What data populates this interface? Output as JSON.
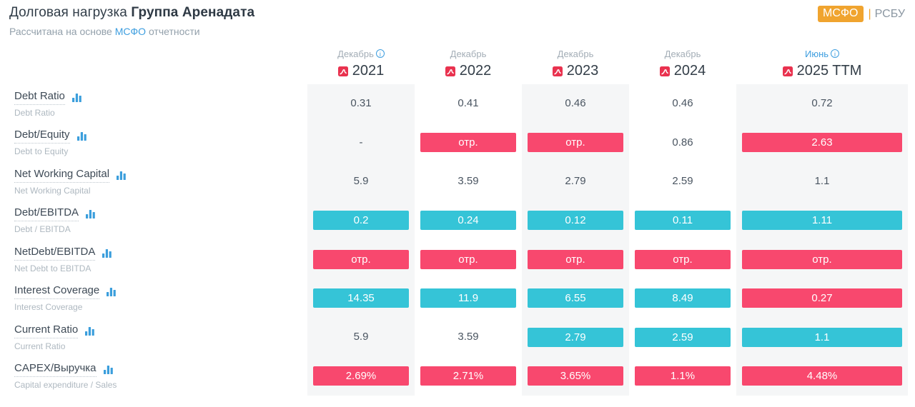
{
  "page": {
    "title_regular": "Долговая нагрузка",
    "title_bold": "Группа Аренадата",
    "subtitle_prefix": "Рассчитана на основе",
    "subtitle_link": "МСФО",
    "subtitle_suffix": "отчетности"
  },
  "toggle": {
    "active": "МСФО",
    "pipe": "|",
    "inactive": "РСБУ"
  },
  "colors": {
    "red": "#F8486E",
    "teal": "#35C4D7",
    "blue": "#3E9EDF",
    "orange": "#F0A42F",
    "stripe": "#F5F6F7",
    "pdf_red": "#E9324F"
  },
  "icons": {
    "pdf": "pdf-icon",
    "info": "info-icon",
    "chart": "bar-chart-icon"
  },
  "table": {
    "columns": [
      {
        "month": "Декабрь",
        "year": "2021",
        "info": true,
        "month_blue": false
      },
      {
        "month": "Декабрь",
        "year": "2022",
        "info": false,
        "month_blue": false
      },
      {
        "month": "Декабрь",
        "year": "2023",
        "info": false,
        "month_blue": false
      },
      {
        "month": "Декабрь",
        "year": "2024",
        "info": false,
        "month_blue": false
      },
      {
        "month": "Июнь",
        "year": "2025 TTM",
        "info": true,
        "month_blue": true
      }
    ],
    "rows": [
      {
        "label": "Debt Ratio",
        "sublabel": "Debt Ratio",
        "values": [
          [
            "0.31",
            "plain"
          ],
          [
            "0.41",
            "plain"
          ],
          [
            "0.46",
            "plain"
          ],
          [
            "0.46",
            "plain"
          ],
          [
            "0.72",
            "plain"
          ]
        ]
      },
      {
        "label": "Debt/Equity",
        "sublabel": "Debt to Equity",
        "values": [
          [
            "-",
            "plain"
          ],
          [
            "отр.",
            "red"
          ],
          [
            "отр.",
            "red"
          ],
          [
            "0.86",
            "plain"
          ],
          [
            "2.63",
            "red"
          ]
        ]
      },
      {
        "label": "Net Working Capital",
        "sublabel": "Net Working Capital",
        "values": [
          [
            "5.9",
            "plain"
          ],
          [
            "3.59",
            "plain"
          ],
          [
            "2.79",
            "plain"
          ],
          [
            "2.59",
            "plain"
          ],
          [
            "1.1",
            "plain"
          ]
        ]
      },
      {
        "label": "Debt/EBITDA",
        "sublabel": "Debt / EBITDA",
        "values": [
          [
            "0.2",
            "teal"
          ],
          [
            "0.24",
            "teal"
          ],
          [
            "0.12",
            "teal"
          ],
          [
            "0.11",
            "teal"
          ],
          [
            "1.11",
            "teal"
          ]
        ]
      },
      {
        "label": "NetDebt/EBITDA",
        "sublabel": "Net Debt to EBITDA",
        "values": [
          [
            "отр.",
            "red"
          ],
          [
            "отр.",
            "red"
          ],
          [
            "отр.",
            "red"
          ],
          [
            "отр.",
            "red"
          ],
          [
            "отр.",
            "red"
          ]
        ]
      },
      {
        "label": "Interest Coverage",
        "sublabel": "Interest Coverage",
        "values": [
          [
            "14.35",
            "teal"
          ],
          [
            "11.9",
            "teal"
          ],
          [
            "6.55",
            "teal"
          ],
          [
            "8.49",
            "teal"
          ],
          [
            "0.27",
            "red"
          ]
        ]
      },
      {
        "label": "Current Ratio",
        "sublabel": "Current Ratio",
        "values": [
          [
            "5.9",
            "plain"
          ],
          [
            "3.59",
            "plain"
          ],
          [
            "2.79",
            "teal"
          ],
          [
            "2.59",
            "teal"
          ],
          [
            "1.1",
            "teal"
          ]
        ]
      },
      {
        "label": "CAPEX/Выручка",
        "sublabel": "Capital expenditure / Sales",
        "values": [
          [
            "2.69%",
            "red"
          ],
          [
            "2.71%",
            "red"
          ],
          [
            "3.65%",
            "red"
          ],
          [
            "1.1%",
            "red"
          ],
          [
            "4.48%",
            "red"
          ]
        ]
      }
    ]
  }
}
